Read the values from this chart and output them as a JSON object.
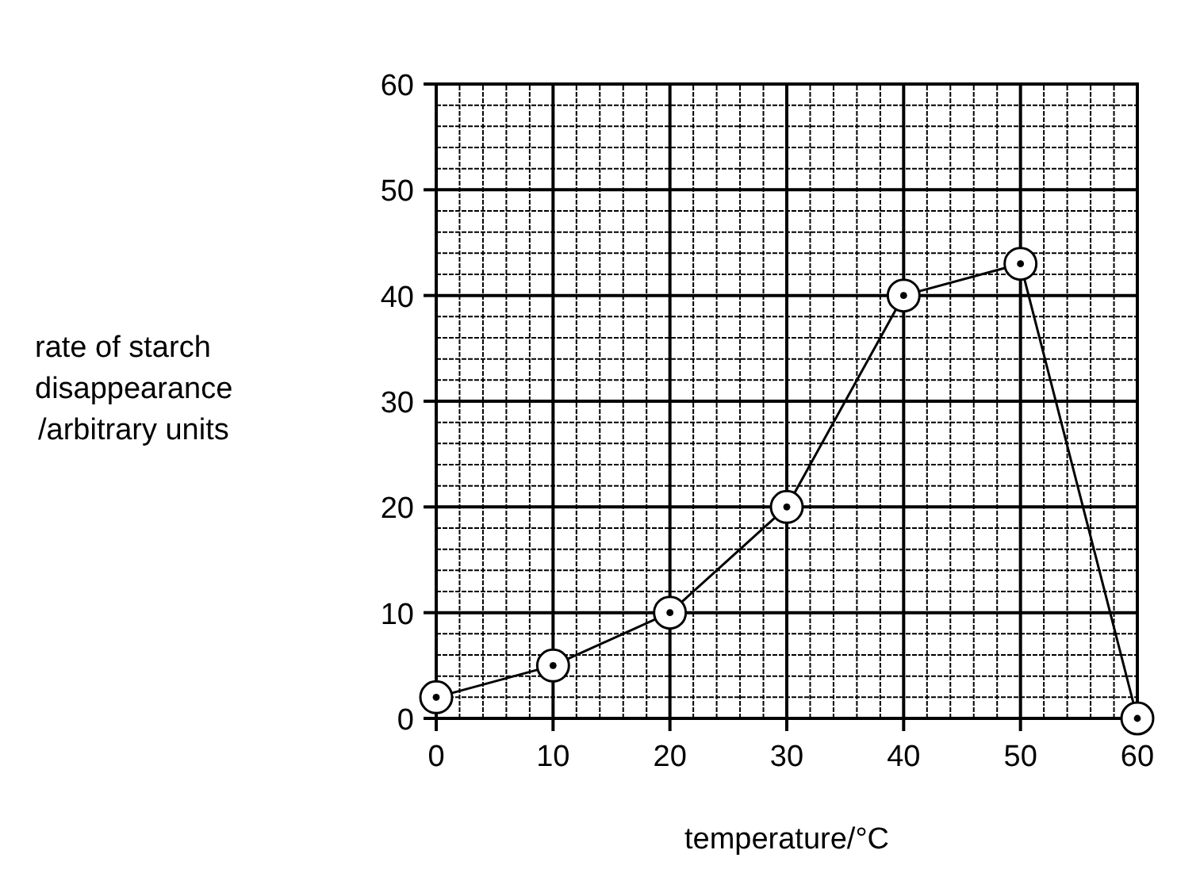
{
  "chart_data": {
    "type": "line",
    "xlabel": "temperature/°C",
    "ylabel": "rate of starch\ndisappearance\n/arbitrary units",
    "x": [
      0,
      10,
      20,
      30,
      40,
      50,
      60
    ],
    "series": [
      {
        "color": "#000000",
        "values": [
          2,
          5,
          10,
          20,
          40,
          43,
          0
        ]
      }
    ],
    "xlim": [
      0,
      60
    ],
    "ylim": [
      0,
      60
    ],
    "xticks": [
      0,
      10,
      20,
      30,
      40,
      50,
      60
    ],
    "yticks": [
      0,
      10,
      20,
      30,
      40,
      50,
      60
    ],
    "grid": true,
    "marker": "circle",
    "line_style": "solid"
  }
}
